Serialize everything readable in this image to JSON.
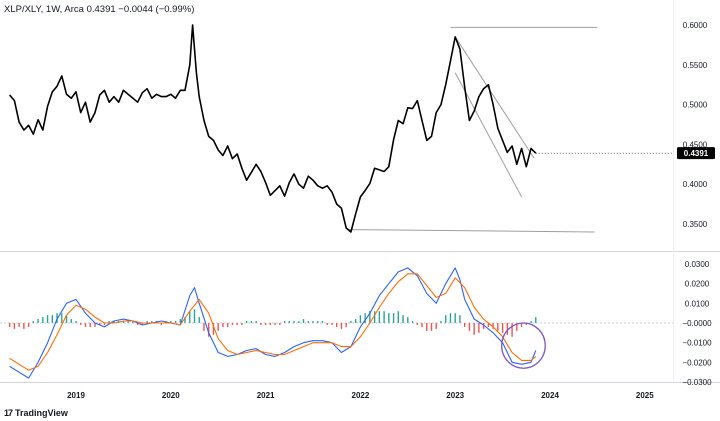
{
  "header": {
    "symbol": "XLP/XLY",
    "interval": "1W",
    "source": "Arca",
    "last": "0.4391",
    "change": "−0.0044",
    "change_pct": "(−0.99%)"
  },
  "branding": {
    "name": "TradingView"
  },
  "colors": {
    "price_line": "#000000",
    "macd_line": "#2962ff",
    "signal_line": "#ff6d00",
    "hist_pos": "#26a69a",
    "hist_neg": "#ef5350",
    "trend_line": "#9e9e9e",
    "annotation_circle": "#7e57c2",
    "price_tag_bg": "#000000"
  },
  "chart_data": [
    {
      "type": "line",
      "pane": "price",
      "x_ticks": [
        "2019",
        "2020",
        "2021",
        "2022",
        "2023",
        "2024",
        "2025"
      ],
      "x_range": [
        2018.3,
        2025.6
      ],
      "y_ticks": [
        "0.6000",
        "0.5500",
        "0.5000",
        "0.4500",
        "0.4000",
        "0.3500"
      ],
      "ylim": [
        0.32,
        0.66
      ],
      "last_price_label": "0.4391",
      "series": [
        {
          "x": [
            2018.3,
            2018.35,
            2018.4,
            2018.45,
            2018.5,
            2018.55,
            2018.6,
            2018.65,
            2018.7,
            2018.75,
            2018.8,
            2018.85,
            2018.9,
            2018.95,
            2019.0,
            2019.05,
            2019.1,
            2019.15,
            2019.2,
            2019.25,
            2019.3,
            2019.35,
            2019.4,
            2019.45,
            2019.5,
            2019.55,
            2019.6,
            2019.65,
            2019.7,
            2019.75,
            2019.8,
            2019.85,
            2019.9,
            2019.95,
            2020.0,
            2020.05,
            2020.1,
            2020.15,
            2020.2,
            2020.23,
            2020.27,
            2020.3,
            2020.35,
            2020.4,
            2020.45,
            2020.5,
            2020.55,
            2020.6,
            2020.65,
            2020.7,
            2020.75,
            2020.8,
            2020.85,
            2020.9,
            2020.95,
            2021.0,
            2021.05,
            2021.1,
            2021.15,
            2021.2,
            2021.25,
            2021.3,
            2021.35,
            2021.4,
            2021.45,
            2021.5,
            2021.55,
            2021.6,
            2021.65,
            2021.7,
            2021.75,
            2021.8,
            2021.85,
            2021.9,
            2021.95,
            2022.0,
            2022.05,
            2022.1,
            2022.15,
            2022.2,
            2022.25,
            2022.3,
            2022.35,
            2022.4,
            2022.45,
            2022.5,
            2022.55,
            2022.6,
            2022.65,
            2022.7,
            2022.75,
            2022.8,
            2022.85,
            2022.9,
            2022.95,
            2023.0,
            2023.05,
            2023.1,
            2023.15,
            2023.2,
            2023.25,
            2023.3,
            2023.35,
            2023.4,
            2023.45,
            2023.5,
            2023.55,
            2023.6,
            2023.65,
            2023.7,
            2023.75,
            2023.8,
            2023.85
          ],
          "y": [
            0.512,
            0.505,
            0.478,
            0.468,
            0.474,
            0.463,
            0.481,
            0.468,
            0.498,
            0.516,
            0.523,
            0.536,
            0.513,
            0.508,
            0.516,
            0.49,
            0.503,
            0.478,
            0.49,
            0.512,
            0.518,
            0.503,
            0.51,
            0.503,
            0.518,
            0.513,
            0.508,
            0.503,
            0.515,
            0.52,
            0.508,
            0.513,
            0.51,
            0.51,
            0.513,
            0.508,
            0.518,
            0.518,
            0.55,
            0.6,
            0.54,
            0.51,
            0.48,
            0.46,
            0.455,
            0.443,
            0.436,
            0.448,
            0.432,
            0.438,
            0.42,
            0.405,
            0.415,
            0.425,
            0.416,
            0.402,
            0.386,
            0.392,
            0.398,
            0.385,
            0.402,
            0.413,
            0.4,
            0.395,
            0.41,
            0.405,
            0.398,
            0.395,
            0.398,
            0.39,
            0.375,
            0.37,
            0.345,
            0.34,
            0.363,
            0.384,
            0.392,
            0.401,
            0.42,
            0.418,
            0.416,
            0.422,
            0.456,
            0.48,
            0.476,
            0.496,
            0.495,
            0.505,
            0.48,
            0.455,
            0.46,
            0.49,
            0.5,
            0.525,
            0.555,
            0.585,
            0.57,
            0.522,
            0.48,
            0.492,
            0.51,
            0.52,
            0.525,
            0.5,
            0.47,
            0.455,
            0.44,
            0.448,
            0.425,
            0.445,
            0.422,
            0.445,
            0.439
          ]
        }
      ],
      "trend_lines": [
        {
          "x1": 2022.95,
          "y1": 0.597,
          "x2": 2024.5,
          "y2": 0.597
        },
        {
          "x1": 2021.87,
          "y1": 0.343,
          "x2": 2024.47,
          "y2": 0.34
        },
        {
          "x1": 2023.0,
          "y1": 0.585,
          "x2": 2023.83,
          "y2": 0.433
        },
        {
          "x1": 2023.0,
          "y1": 0.54,
          "x2": 2023.7,
          "y2": 0.384
        }
      ]
    },
    {
      "type": "bar",
      "pane": "macd",
      "x_range": [
        2018.3,
        2025.6
      ],
      "y_ticks": [
        "0.0300",
        "0.0200",
        "0.0100",
        "−0.0000",
        "−0.0100",
        "−0.0200",
        "−0.0300"
      ],
      "ylim": [
        -0.034,
        0.033
      ],
      "series": [
        {
          "name": "MACD",
          "x": [
            2018.3,
            2018.4,
            2018.5,
            2018.6,
            2018.7,
            2018.8,
            2018.9,
            2019.0,
            2019.1,
            2019.2,
            2019.3,
            2019.4,
            2019.5,
            2019.6,
            2019.7,
            2019.8,
            2019.9,
            2020.0,
            2020.1,
            2020.2,
            2020.25,
            2020.3,
            2020.4,
            2020.5,
            2020.6,
            2020.7,
            2020.8,
            2020.9,
            2021.0,
            2021.1,
            2021.2,
            2021.3,
            2021.4,
            2021.5,
            2021.6,
            2021.7,
            2021.8,
            2021.9,
            2022.0,
            2022.1,
            2022.2,
            2022.3,
            2022.4,
            2022.5,
            2022.6,
            2022.7,
            2022.8,
            2022.9,
            2023.0,
            2023.05,
            2023.1,
            2023.2,
            2023.3,
            2023.4,
            2023.5,
            2023.6,
            2023.7,
            2023.8,
            2023.85
          ],
          "y": [
            -0.022,
            -0.025,
            -0.028,
            -0.02,
            -0.01,
            0.002,
            0.01,
            0.012,
            0.005,
            0.0,
            -0.002,
            0.001,
            0.002,
            0.001,
            -0.001,
            0.0,
            0.001,
            0.0,
            -0.001,
            0.014,
            0.018,
            0.01,
            -0.005,
            -0.015,
            -0.017,
            -0.016,
            -0.014,
            -0.013,
            -0.016,
            -0.017,
            -0.015,
            -0.012,
            -0.01,
            -0.009,
            -0.009,
            -0.01,
            -0.015,
            -0.012,
            -0.002,
            0.005,
            0.014,
            0.02,
            0.026,
            0.028,
            0.024,
            0.015,
            0.01,
            0.02,
            0.028,
            0.022,
            0.012,
            0.002,
            -0.001,
            -0.005,
            -0.01,
            -0.02,
            -0.021,
            -0.02,
            -0.014
          ]
        },
        {
          "name": "Signal",
          "x": [
            2018.3,
            2018.4,
            2018.5,
            2018.6,
            2018.7,
            2018.8,
            2018.9,
            2019.0,
            2019.1,
            2019.2,
            2019.3,
            2019.4,
            2019.5,
            2019.6,
            2019.7,
            2019.8,
            2019.9,
            2020.0,
            2020.1,
            2020.2,
            2020.3,
            2020.4,
            2020.5,
            2020.6,
            2020.7,
            2020.8,
            2020.9,
            2021.0,
            2021.1,
            2021.2,
            2021.3,
            2021.4,
            2021.5,
            2021.6,
            2021.7,
            2021.8,
            2021.9,
            2022.0,
            2022.1,
            2022.2,
            2022.3,
            2022.4,
            2022.5,
            2022.6,
            2022.7,
            2022.8,
            2022.9,
            2023.0,
            2023.1,
            2023.2,
            2023.3,
            2023.4,
            2023.5,
            2023.6,
            2023.7,
            2023.8,
            2023.85
          ],
          "y": [
            -0.018,
            -0.021,
            -0.024,
            -0.022,
            -0.015,
            -0.006,
            0.004,
            0.009,
            0.007,
            0.003,
            0.0,
            0.0,
            0.001,
            0.001,
            0.0,
            0.0,
            0.0,
            0.0,
            -0.001,
            0.006,
            0.012,
            0.005,
            -0.008,
            -0.014,
            -0.016,
            -0.015,
            -0.014,
            -0.015,
            -0.016,
            -0.016,
            -0.014,
            -0.012,
            -0.01,
            -0.01,
            -0.01,
            -0.012,
            -0.012,
            -0.007,
            0.0,
            0.008,
            0.015,
            0.021,
            0.025,
            0.025,
            0.019,
            0.013,
            0.015,
            0.023,
            0.018,
            0.008,
            0.002,
            -0.002,
            -0.007,
            -0.015,
            -0.019,
            -0.019,
            -0.017
          ]
        }
      ],
      "histogram": {
        "x": [
          2018.3,
          2018.35,
          2018.4,
          2018.45,
          2018.5,
          2018.55,
          2018.6,
          2018.65,
          2018.7,
          2018.75,
          2018.8,
          2018.85,
          2018.9,
          2018.95,
          2019.0,
          2019.05,
          2019.1,
          2019.15,
          2019.2,
          2019.25,
          2019.3,
          2019.35,
          2019.4,
          2019.45,
          2019.5,
          2019.55,
          2019.6,
          2019.65,
          2019.7,
          2019.75,
          2019.8,
          2019.85,
          2019.9,
          2019.95,
          2020.0,
          2020.05,
          2020.1,
          2020.15,
          2020.2,
          2020.25,
          2020.3,
          2020.35,
          2020.4,
          2020.45,
          2020.5,
          2020.55,
          2020.6,
          2020.65,
          2020.7,
          2020.75,
          2020.8,
          2020.85,
          2020.9,
          2020.95,
          2021.0,
          2021.05,
          2021.1,
          2021.15,
          2021.2,
          2021.25,
          2021.3,
          2021.35,
          2021.4,
          2021.45,
          2021.5,
          2021.55,
          2021.6,
          2021.65,
          2021.7,
          2021.75,
          2021.8,
          2021.85,
          2021.9,
          2021.95,
          2022.0,
          2022.05,
          2022.1,
          2022.15,
          2022.2,
          2022.25,
          2022.3,
          2022.35,
          2022.4,
          2022.45,
          2022.5,
          2022.55,
          2022.6,
          2022.65,
          2022.7,
          2022.75,
          2022.8,
          2022.85,
          2022.9,
          2022.95,
          2023.0,
          2023.05,
          2023.1,
          2023.15,
          2023.2,
          2023.25,
          2023.3,
          2023.35,
          2023.4,
          2023.45,
          2023.5,
          2023.55,
          2023.6,
          2023.65,
          2023.7,
          2023.75,
          2023.8,
          2023.85
        ],
        "values": [
          -0.002,
          -0.003,
          -0.002,
          -0.003,
          -0.002,
          0.001,
          0.002,
          0.003,
          0.004,
          0.004,
          0.005,
          0.005,
          0.004,
          0.002,
          0.001,
          -0.001,
          -0.002,
          -0.002,
          -0.002,
          -0.001,
          -0.001,
          0.001,
          0.001,
          0.001,
          0.001,
          0.001,
          0.001,
          -0.001,
          -0.001,
          0.001,
          0.001,
          0.001,
          -0.001,
          0.001,
          0.001,
          0.001,
          0.002,
          0.003,
          0.006,
          0.007,
          0.003,
          -0.004,
          -0.007,
          -0.006,
          -0.004,
          -0.002,
          -0.002,
          -0.001,
          -0.001,
          -0.001,
          0.001,
          0.001,
          0.001,
          -0.001,
          -0.001,
          -0.001,
          -0.001,
          -0.001,
          0.001,
          0.001,
          0.001,
          0.001,
          0.002,
          0.001,
          0.001,
          0.001,
          0.001,
          -0.001,
          -0.001,
          -0.002,
          -0.003,
          -0.002,
          0.001,
          0.002,
          0.004,
          0.005,
          0.006,
          0.006,
          0.006,
          0.006,
          0.005,
          0.005,
          0.006,
          0.004,
          0.003,
          0.001,
          -0.001,
          -0.002,
          -0.004,
          -0.004,
          -0.003,
          0.001,
          0.004,
          0.005,
          0.005,
          0.004,
          -0.002,
          -0.004,
          -0.006,
          -0.005,
          -0.003,
          -0.002,
          -0.003,
          -0.004,
          -0.005,
          -0.006,
          -0.007,
          -0.004,
          -0.002,
          -0.001,
          0.001,
          0.003
        ]
      },
      "annotation": {
        "type": "circle",
        "x": 2023.72,
        "y": -0.0115,
        "rx_years": 0.23,
        "ry_value": 0.0115
      }
    }
  ]
}
